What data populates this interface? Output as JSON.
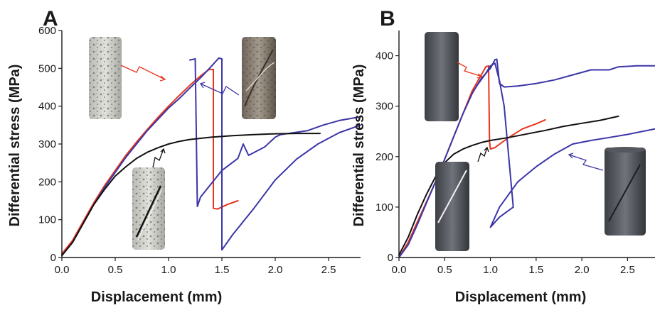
{
  "colors": {
    "red": "#e8341c",
    "blue": "#3b35a8",
    "black": "#111111"
  },
  "chart_data": [
    {
      "type": "line",
      "panel_label": "A",
      "xlabel": "Displacement (mm)",
      "ylabel": "Differential stress (MPa)",
      "xlim": [
        0,
        2.8
      ],
      "ylim": [
        0,
        600
      ],
      "x_ticks": [
        "0.0",
        "0.5",
        "1.0",
        "1.5",
        "2.0",
        "2.5"
      ],
      "y_ticks": [
        "0",
        "100",
        "200",
        "300",
        "400",
        "500",
        "600"
      ],
      "grid": false,
      "legend": "none",
      "series": [
        {
          "color": "#e8341c",
          "points": [
            [
              0,
              10
            ],
            [
              0.1,
              45
            ],
            [
              0.2,
              95
            ],
            [
              0.3,
              145
            ],
            [
              0.4,
              190
            ],
            [
              0.5,
              230
            ],
            [
              0.6,
              270
            ],
            [
              0.7,
              305
            ],
            [
              0.8,
              338
            ],
            [
              0.9,
              370
            ],
            [
              1.0,
              400
            ],
            [
              1.1,
              428
            ],
            [
              1.2,
              455
            ],
            [
              1.3,
              480
            ],
            [
              1.38,
              497
            ],
            [
              1.42,
              497
            ],
            [
              1.42,
              130
            ],
            [
              1.46,
              128
            ],
            [
              1.55,
              140
            ],
            [
              1.65,
              150
            ]
          ]
        },
        {
          "color": "#3b35a8",
          "points": [
            [
              0,
              5
            ],
            [
              0.1,
              40
            ],
            [
              0.2,
              90
            ],
            [
              0.3,
              140
            ],
            [
              0.4,
              185
            ],
            [
              0.5,
              225
            ],
            [
              0.6,
              265
            ],
            [
              0.7,
              300
            ],
            [
              0.8,
              335
            ],
            [
              0.9,
              365
            ],
            [
              1.0,
              395
            ],
            [
              1.1,
              420
            ],
            [
              1.2,
              448
            ],
            [
              1.3,
              475
            ],
            [
              1.4,
              505
            ],
            [
              1.47,
              527
            ],
            [
              1.5,
              525
            ],
            [
              1.5,
              20
            ],
            [
              1.6,
              60
            ],
            [
              1.8,
              130
            ],
            [
              2.0,
              205
            ],
            [
              2.2,
              260
            ],
            [
              2.4,
              300
            ],
            [
              2.6,
              330
            ],
            [
              2.8,
              350
            ]
          ]
        },
        {
          "color": "#3b35a8",
          "points": [
            [
              1.2,
              522
            ],
            [
              1.25,
              525
            ],
            [
              1.27,
              135
            ],
            [
              1.3,
              160
            ],
            [
              1.4,
              195
            ],
            [
              1.5,
              230
            ],
            [
              1.65,
              262
            ],
            [
              1.7,
              300
            ],
            [
              1.75,
              270
            ],
            [
              1.9,
              292
            ],
            [
              2.0,
              318
            ],
            [
              2.05,
              325
            ],
            [
              2.3,
              335
            ],
            [
              2.45,
              350
            ],
            [
              2.6,
              362
            ],
            [
              2.8,
              372
            ]
          ]
        },
        {
          "color": "#111111",
          "points": [
            [
              0,
              5
            ],
            [
              0.1,
              40
            ],
            [
              0.2,
              90
            ],
            [
              0.3,
              140
            ],
            [
              0.4,
              180
            ],
            [
              0.5,
              215
            ],
            [
              0.6,
              240
            ],
            [
              0.7,
              262
            ],
            [
              0.8,
              278
            ],
            [
              0.9,
              290
            ],
            [
              1.0,
              300
            ],
            [
              1.1,
              307
            ],
            [
              1.2,
              312
            ],
            [
              1.4,
              318
            ],
            [
              1.6,
              322
            ],
            [
              1.8,
              325
            ],
            [
              2.0,
              327
            ],
            [
              2.2,
              328
            ],
            [
              2.42,
              328
            ]
          ]
        }
      ]
    },
    {
      "type": "line",
      "panel_label": "B",
      "xlabel": "Displacement (mm)",
      "ylabel": "Differential stress (MPa)",
      "xlim": [
        0,
        2.8
      ],
      "ylim": [
        0,
        450
      ],
      "x_ticks": [
        "0.0",
        "0.5",
        "1.0",
        "1.5",
        "2.0",
        "2.5"
      ],
      "y_ticks": [
        "0",
        "100",
        "200",
        "300",
        "400"
      ],
      "grid": false,
      "legend": "none",
      "series": [
        {
          "color": "#e8341c",
          "points": [
            [
              0,
              0
            ],
            [
              0.1,
              30
            ],
            [
              0.2,
              70
            ],
            [
              0.3,
              110
            ],
            [
              0.4,
              150
            ],
            [
              0.5,
              195
            ],
            [
              0.6,
              240
            ],
            [
              0.7,
              285
            ],
            [
              0.8,
              330
            ],
            [
              0.9,
              362
            ],
            [
              0.95,
              378
            ],
            [
              0.98,
              380
            ],
            [
              0.99,
              230
            ],
            [
              1.0,
              215
            ],
            [
              1.05,
              218
            ],
            [
              1.2,
              238
            ],
            [
              1.35,
              255
            ],
            [
              1.5,
              265
            ],
            [
              1.6,
              273
            ]
          ]
        },
        {
          "color": "#3b35a8",
          "points": [
            [
              0,
              0
            ],
            [
              0.1,
              25
            ],
            [
              0.2,
              65
            ],
            [
              0.3,
              108
            ],
            [
              0.4,
              150
            ],
            [
              0.5,
              195
            ],
            [
              0.6,
              240
            ],
            [
              0.7,
              285
            ],
            [
              0.8,
              325
            ],
            [
              0.9,
              355
            ],
            [
              1.0,
              375
            ],
            [
              1.05,
              392
            ],
            [
              1.07,
              393
            ],
            [
              1.1,
              345
            ],
            [
              1.15,
              338
            ],
            [
              1.3,
              340
            ],
            [
              1.5,
              345
            ],
            [
              1.7,
              352
            ],
            [
              1.9,
              362
            ],
            [
              2.1,
              372
            ],
            [
              2.3,
              372
            ],
            [
              2.4,
              378
            ],
            [
              2.6,
              380
            ],
            [
              2.8,
              380
            ]
          ]
        },
        {
          "color": "#3b35a8",
          "points": [
            [
              0.85,
              340
            ],
            [
              0.95,
              365
            ],
            [
              1.0,
              380
            ],
            [
              1.05,
              385
            ],
            [
              1.1,
              350
            ],
            [
              1.15,
              300
            ],
            [
              1.25,
              100
            ],
            [
              1.1,
              80
            ],
            [
              1.0,
              60
            ],
            [
              1.1,
              100
            ],
            [
              1.3,
              150
            ],
            [
              1.5,
              180
            ],
            [
              1.7,
              205
            ],
            [
              1.9,
              225
            ],
            [
              2.1,
              232
            ],
            [
              2.3,
              238
            ],
            [
              2.5,
              244
            ],
            [
              2.8,
              255
            ]
          ]
        },
        {
          "color": "#111111",
          "points": [
            [
              0,
              5
            ],
            [
              0.1,
              40
            ],
            [
              0.2,
              85
            ],
            [
              0.3,
              125
            ],
            [
              0.4,
              160
            ],
            [
              0.5,
              188
            ],
            [
              0.6,
              205
            ],
            [
              0.7,
              215
            ],
            [
              0.8,
              222
            ],
            [
              0.9,
              228
            ],
            [
              1.0,
              232
            ],
            [
              1.2,
              238
            ],
            [
              1.4,
              245
            ],
            [
              1.6,
              252
            ],
            [
              1.8,
              260
            ],
            [
              2.0,
              266
            ],
            [
              2.2,
              272
            ],
            [
              2.4,
              280
            ]
          ]
        }
      ]
    }
  ]
}
